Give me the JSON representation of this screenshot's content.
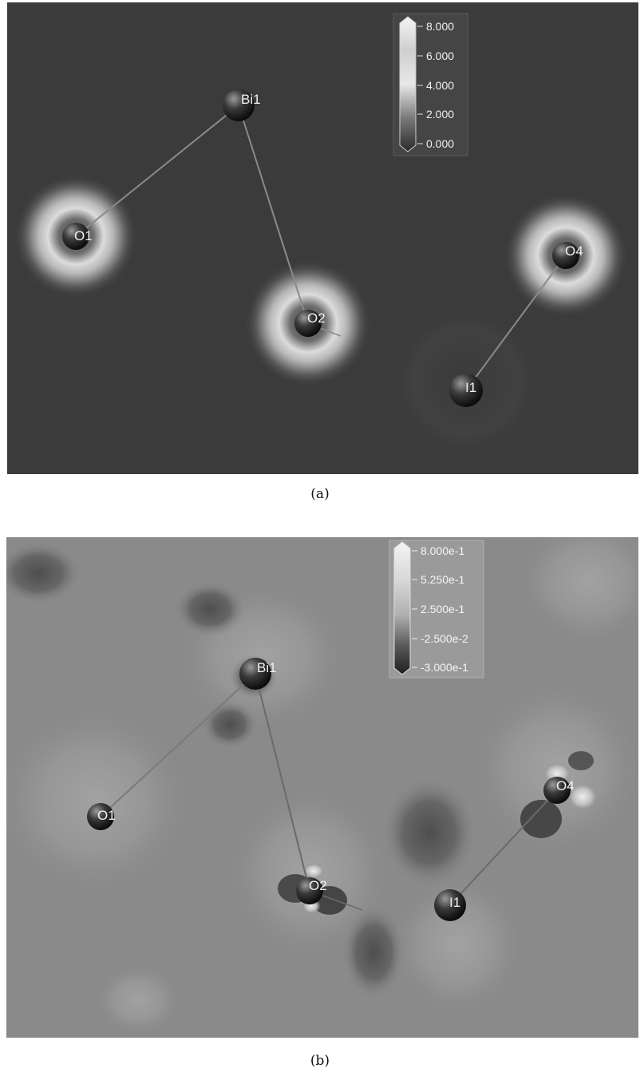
{
  "panels": [
    {
      "id": "a",
      "caption": "(a)",
      "colorbar_ticks": [
        "8.000",
        "6.000",
        "4.000",
        "2.000",
        "0.000"
      ],
      "atoms": [
        {
          "label": "Bi1"
        },
        {
          "label": "O1"
        },
        {
          "label": "O2"
        },
        {
          "label": "O4"
        },
        {
          "label": "I1"
        }
      ],
      "bonds": [
        {
          "from": "Bi1",
          "to": "O1"
        },
        {
          "from": "Bi1",
          "to": "O2"
        },
        {
          "from": "O4",
          "to": "I1"
        }
      ]
    },
    {
      "id": "b",
      "caption": "(b)",
      "colorbar_ticks": [
        "8.000e-1",
        "5.250e-1",
        "2.500e-1",
        "-2.500e-2",
        "-3.000e-1"
      ],
      "atoms": [
        {
          "label": "Bi1"
        },
        {
          "label": "O1"
        },
        {
          "label": "O2"
        },
        {
          "label": "O4"
        },
        {
          "label": "I1"
        }
      ],
      "bonds": [
        {
          "from": "Bi1",
          "to": "O1"
        },
        {
          "from": "Bi1",
          "to": "O2"
        },
        {
          "from": "O4",
          "to": "I1"
        }
      ]
    }
  ]
}
